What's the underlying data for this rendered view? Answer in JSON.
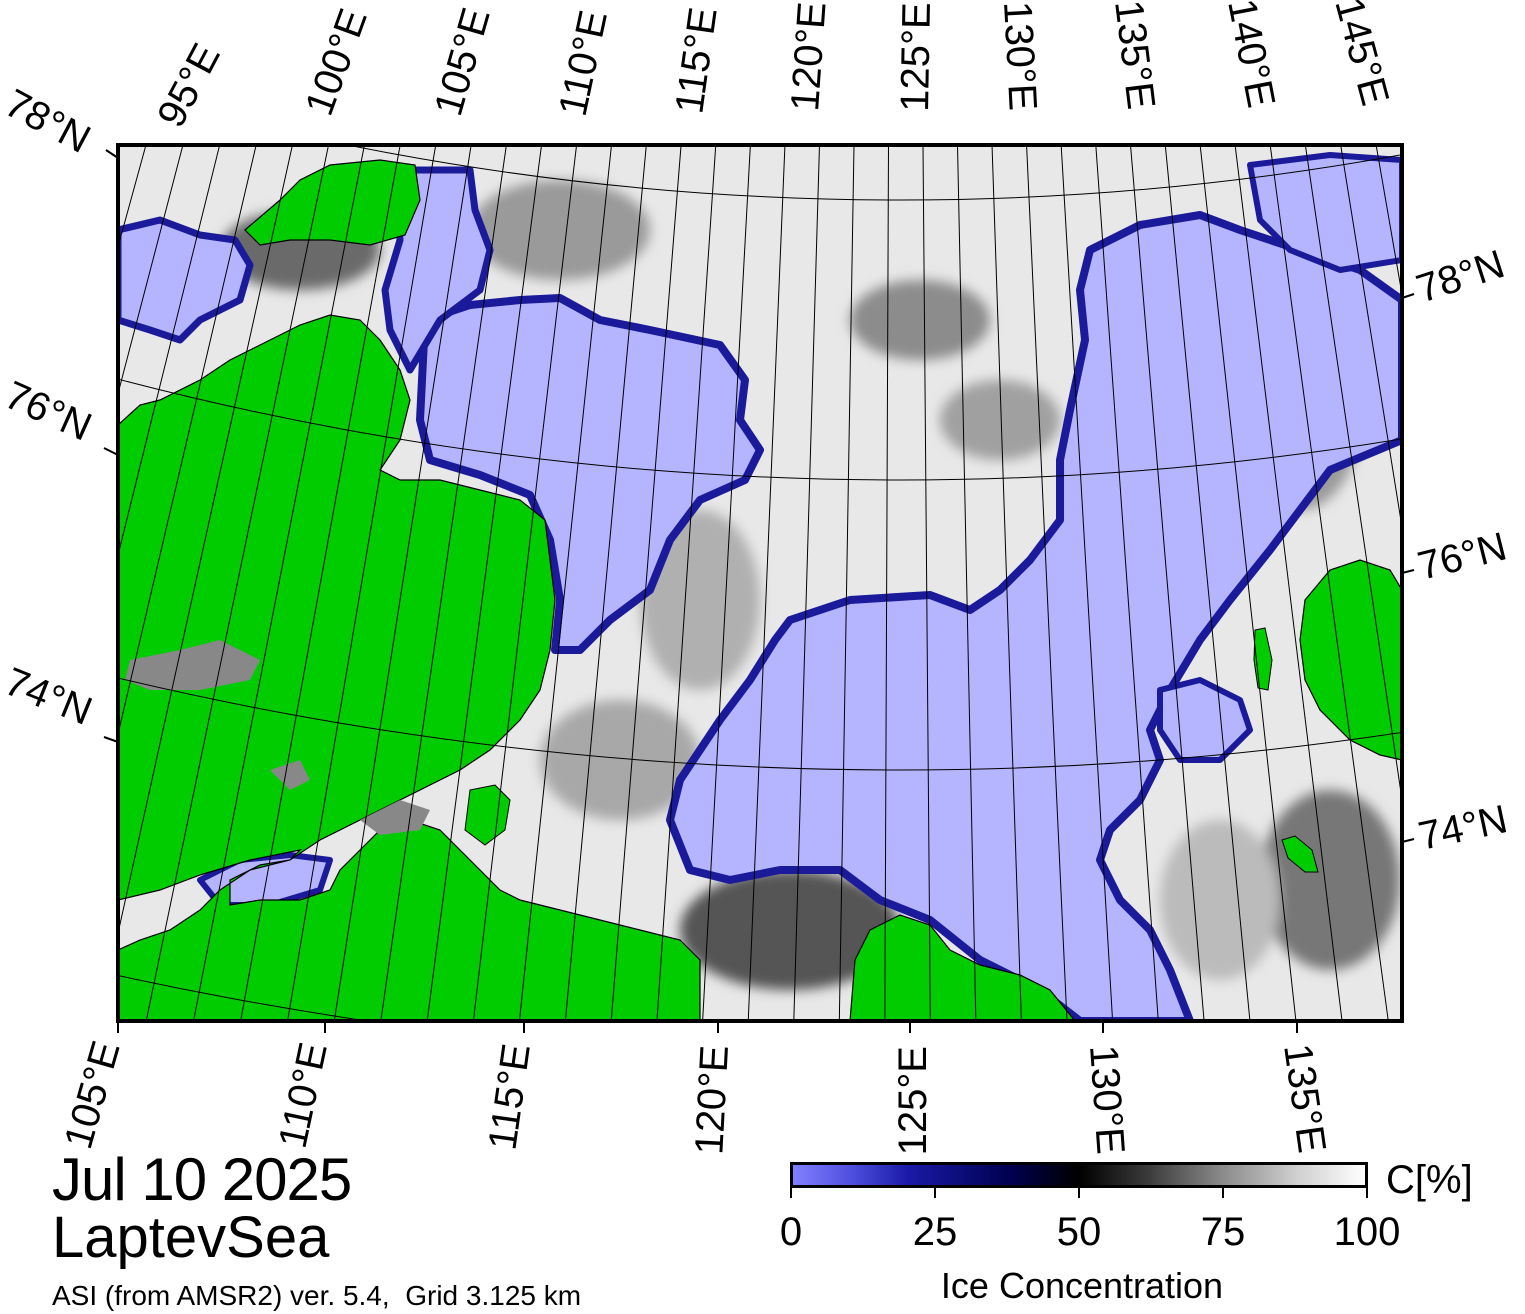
{
  "map": {
    "date": "Jul 10 2025",
    "region": "LaptevSea",
    "source": "ASI (from AMSR2) ver. 5.4,  Grid 3.125 km",
    "colors": {
      "land": "#00cc00",
      "open_water": "#b4b4ff",
      "coast_mask": "#888888",
      "frame": "#000000",
      "graticule": "#000000"
    },
    "top_lon_labels": [
      "95°E",
      "100°E",
      "105°E",
      "110°E",
      "115°E",
      "120°E",
      "125°E",
      "130°E",
      "135°E",
      "140°E",
      "145°E"
    ],
    "bottom_lon_labels": [
      "105°E",
      "110°E",
      "115°E",
      "120°E",
      "125°E",
      "130°E",
      "135°E"
    ],
    "left_lat_labels": [
      "78°N",
      "76°N",
      "74°N"
    ],
    "right_lat_labels": [
      "78°N",
      "76°N",
      "74°N"
    ],
    "colorbar": {
      "unit": "C[%]",
      "title": "Ice Concentration",
      "ticks": [
        "0",
        "25",
        "50",
        "75",
        "100"
      ],
      "tick_values": [
        0,
        25,
        50,
        75,
        100
      ],
      "range": [
        0,
        100
      ]
    }
  }
}
